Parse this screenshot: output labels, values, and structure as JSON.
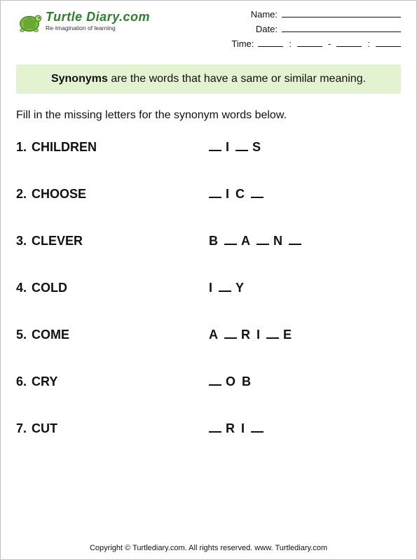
{
  "logo": {
    "brand_main": "Turtle Diary",
    "brand_domain": ".com",
    "tagline": "Re-Imagination of learning",
    "shell_color": "#7fbf3f",
    "shell_dark": "#3f7f1f",
    "body_color": "#a8d66f"
  },
  "meta": {
    "name_label": "Name:",
    "date_label": "Date:",
    "time_label": "Time:"
  },
  "definition": {
    "term": "Synonyms",
    "rest": " are the words that have a same or similar meaning.",
    "bg_color": "#e3f3d2"
  },
  "instruction": "Fill in the missing letters for the synonym words below.",
  "items": [
    {
      "n": "1.",
      "word": "CHILDREN",
      "pattern": [
        "_",
        "I",
        "_",
        "S"
      ]
    },
    {
      "n": "2.",
      "word": "CHOOSE",
      "pattern": [
        "_",
        "I",
        "C",
        "_"
      ]
    },
    {
      "n": "3.",
      "word": "CLEVER",
      "pattern": [
        "B",
        "_",
        "A",
        "_",
        "N",
        "_"
      ]
    },
    {
      "n": "4.",
      "word": "COLD",
      "pattern": [
        "I",
        "_",
        "Y"
      ]
    },
    {
      "n": "5.",
      "word": "COME",
      "pattern": [
        "A",
        "_",
        "R",
        "I",
        "_",
        "E"
      ]
    },
    {
      "n": "6.",
      "word": "CRY",
      "pattern": [
        "_",
        "O",
        "B"
      ]
    },
    {
      "n": "7.",
      "word": "CUT",
      "pattern": [
        "_",
        "R",
        "I",
        "_"
      ]
    }
  ],
  "footer": "Copyright © Turtlediary.com. All rights reserved.  www. Turtlediary.com"
}
